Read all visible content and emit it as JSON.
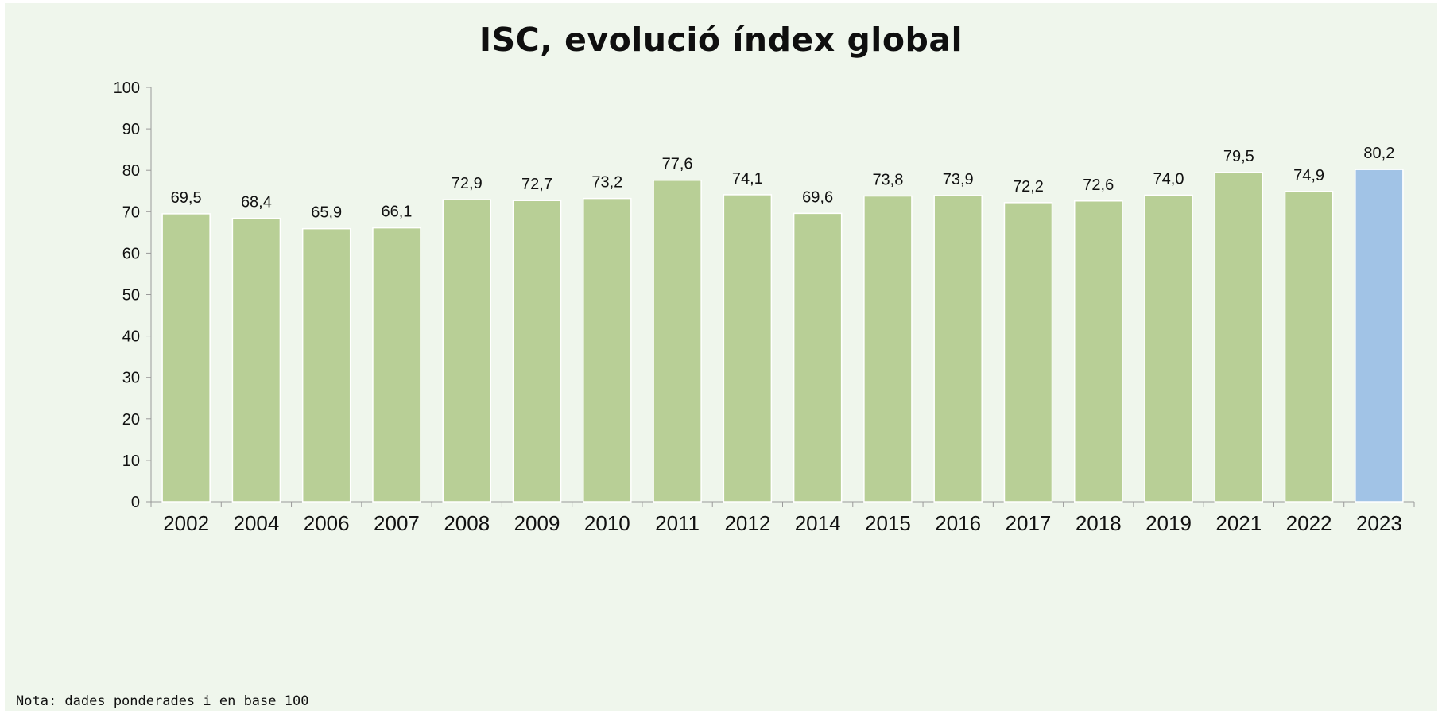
{
  "chart_data": {
    "type": "bar",
    "title": "ISC, evolució índex global",
    "categories": [
      "2002",
      "2004",
      "2006",
      "2007",
      "2008",
      "2009",
      "2010",
      "2011",
      "2012",
      "2014",
      "2015",
      "2016",
      "2017",
      "2018",
      "2019",
      "2021",
      "2022",
      "2023"
    ],
    "values": [
      69.5,
      68.4,
      65.9,
      66.1,
      72.9,
      72.7,
      73.2,
      77.6,
      74.1,
      69.6,
      73.8,
      73.9,
      72.2,
      72.6,
      74.0,
      79.5,
      74.9,
      80.2
    ],
    "data_labels": [
      "69,5",
      "68,4",
      "65,9",
      "66,1",
      "72,9",
      "72,7",
      "73,2",
      "77,6",
      "74,1",
      "69,6",
      "73,8",
      "73,9",
      "72,2",
      "72,6",
      "74,0",
      "79,5",
      "74,9",
      "80,2"
    ],
    "ylim": [
      0,
      100
    ],
    "yticks": [
      0,
      10,
      20,
      30,
      40,
      50,
      60,
      70,
      80,
      90,
      100
    ],
    "xlabel": "",
    "ylabel": "",
    "grid": false,
    "colors": {
      "bar": "#b8cf96",
      "highlight": "#a1c3e6",
      "highlight_category": "2023",
      "background": "#eff6ec"
    }
  },
  "note": "Nota: dades ponderades i en base 100"
}
